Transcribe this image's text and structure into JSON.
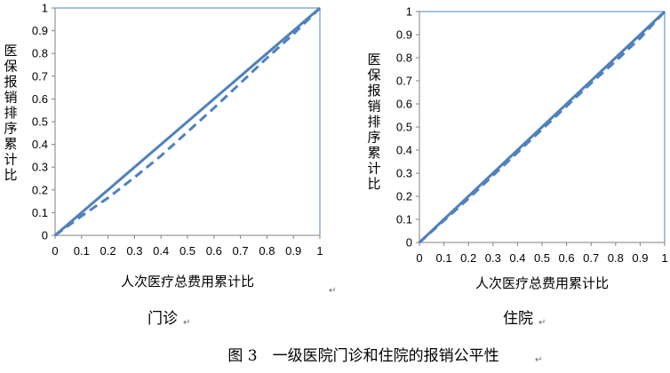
{
  "colors": {
    "line": "#4f81bd",
    "axis": "#808080",
    "frame": "#4f81bd"
  },
  "figure_caption": "图 3　一级医院门诊和住院的报销公平性",
  "chart_data": [
    {
      "type": "line",
      "caption": "门诊",
      "xlabel": "人次医疗总费用累计比",
      "ylabel": "医保报销排序累计比",
      "xlim": [
        0,
        1
      ],
      "ylim": [
        0,
        1
      ],
      "xticks": [
        "0",
        "0.1",
        "0.2",
        "0.3",
        "0.4",
        "0.5",
        "0.6",
        "0.7",
        "0.8",
        "0.9",
        "1"
      ],
      "yticks": [
        "0",
        "0.1",
        "0.2",
        "0.3",
        "0.4",
        "0.5",
        "0.6",
        "0.7",
        "0.8",
        "0.9",
        "1"
      ],
      "grid": false,
      "series": [
        {
          "style": "solid",
          "x": [
            0,
            0.1,
            0.2,
            0.3,
            0.4,
            0.5,
            0.6,
            0.7,
            0.8,
            0.9,
            1
          ],
          "y": [
            0,
            0.1,
            0.2,
            0.3,
            0.4,
            0.5,
            0.6,
            0.7,
            0.8,
            0.9,
            1
          ]
        },
        {
          "style": "dashed",
          "x": [
            0,
            0.1,
            0.2,
            0.3,
            0.4,
            0.5,
            0.6,
            0.7,
            0.8,
            0.9,
            1
          ],
          "y": [
            0,
            0.085,
            0.165,
            0.255,
            0.35,
            0.455,
            0.56,
            0.67,
            0.78,
            0.885,
            1
          ]
        }
      ]
    },
    {
      "type": "line",
      "caption": "住院",
      "xlabel": "人次医疗总费用累计比",
      "ylabel": "医保报销排序累计比",
      "xlim": [
        0,
        1
      ],
      "ylim": [
        0,
        1
      ],
      "xticks": [
        "0",
        "0.1",
        "0.2",
        "0.3",
        "0.4",
        "0.5",
        "0.6",
        "0.7",
        "0.8",
        "0.9",
        "1"
      ],
      "yticks": [
        "0",
        "0.1",
        "0.2",
        "0.3",
        "0.4",
        "0.5",
        "0.6",
        "0.7",
        "0.8",
        "0.9",
        "1"
      ],
      "grid": false,
      "series": [
        {
          "style": "solid",
          "x": [
            0,
            0.1,
            0.2,
            0.3,
            0.4,
            0.5,
            0.6,
            0.7,
            0.8,
            0.9,
            1
          ],
          "y": [
            0,
            0.1,
            0.2,
            0.3,
            0.4,
            0.5,
            0.6,
            0.7,
            0.8,
            0.9,
            1
          ]
        },
        {
          "style": "dashed",
          "x": [
            0,
            0.1,
            0.2,
            0.3,
            0.4,
            0.5,
            0.6,
            0.7,
            0.8,
            0.9,
            1
          ],
          "y": [
            0,
            0.095,
            0.19,
            0.29,
            0.39,
            0.49,
            0.59,
            0.69,
            0.785,
            0.885,
            1
          ]
        }
      ]
    }
  ]
}
